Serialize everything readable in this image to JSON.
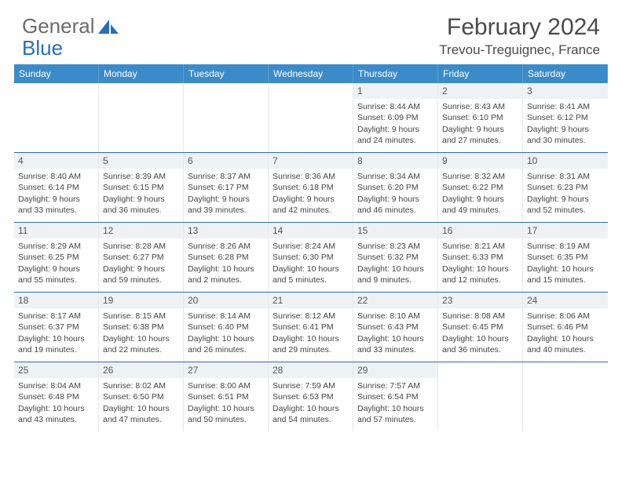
{
  "logo": {
    "text1": "General",
    "text2": "Blue"
  },
  "title": "February 2024",
  "location": "Trevou-Treguignec, France",
  "colors": {
    "header_bg": "#3b8bc9",
    "accent_line": "#2a6fb5",
    "daynum_bg": "#eef2f5",
    "text": "#444444"
  },
  "days_of_week": [
    "Sunday",
    "Monday",
    "Tuesday",
    "Wednesday",
    "Thursday",
    "Friday",
    "Saturday"
  ],
  "weeks": [
    [
      {
        "n": "",
        "sr": "",
        "ss": "",
        "dl": ""
      },
      {
        "n": "",
        "sr": "",
        "ss": "",
        "dl": ""
      },
      {
        "n": "",
        "sr": "",
        "ss": "",
        "dl": ""
      },
      {
        "n": "",
        "sr": "",
        "ss": "",
        "dl": ""
      },
      {
        "n": "1",
        "sr": "Sunrise: 8:44 AM",
        "ss": "Sunset: 6:09 PM",
        "dl": "Daylight: 9 hours and 24 minutes."
      },
      {
        "n": "2",
        "sr": "Sunrise: 8:43 AM",
        "ss": "Sunset: 6:10 PM",
        "dl": "Daylight: 9 hours and 27 minutes."
      },
      {
        "n": "3",
        "sr": "Sunrise: 8:41 AM",
        "ss": "Sunset: 6:12 PM",
        "dl": "Daylight: 9 hours and 30 minutes."
      }
    ],
    [
      {
        "n": "4",
        "sr": "Sunrise: 8:40 AM",
        "ss": "Sunset: 6:14 PM",
        "dl": "Daylight: 9 hours and 33 minutes."
      },
      {
        "n": "5",
        "sr": "Sunrise: 8:39 AM",
        "ss": "Sunset: 6:15 PM",
        "dl": "Daylight: 9 hours and 36 minutes."
      },
      {
        "n": "6",
        "sr": "Sunrise: 8:37 AM",
        "ss": "Sunset: 6:17 PM",
        "dl": "Daylight: 9 hours and 39 minutes."
      },
      {
        "n": "7",
        "sr": "Sunrise: 8:36 AM",
        "ss": "Sunset: 6:18 PM",
        "dl": "Daylight: 9 hours and 42 minutes."
      },
      {
        "n": "8",
        "sr": "Sunrise: 8:34 AM",
        "ss": "Sunset: 6:20 PM",
        "dl": "Daylight: 9 hours and 46 minutes."
      },
      {
        "n": "9",
        "sr": "Sunrise: 8:32 AM",
        "ss": "Sunset: 6:22 PM",
        "dl": "Daylight: 9 hours and 49 minutes."
      },
      {
        "n": "10",
        "sr": "Sunrise: 8:31 AM",
        "ss": "Sunset: 6:23 PM",
        "dl": "Daylight: 9 hours and 52 minutes."
      }
    ],
    [
      {
        "n": "11",
        "sr": "Sunrise: 8:29 AM",
        "ss": "Sunset: 6:25 PM",
        "dl": "Daylight: 9 hours and 55 minutes."
      },
      {
        "n": "12",
        "sr": "Sunrise: 8:28 AM",
        "ss": "Sunset: 6:27 PM",
        "dl": "Daylight: 9 hours and 59 minutes."
      },
      {
        "n": "13",
        "sr": "Sunrise: 8:26 AM",
        "ss": "Sunset: 6:28 PM",
        "dl": "Daylight: 10 hours and 2 minutes."
      },
      {
        "n": "14",
        "sr": "Sunrise: 8:24 AM",
        "ss": "Sunset: 6:30 PM",
        "dl": "Daylight: 10 hours and 5 minutes."
      },
      {
        "n": "15",
        "sr": "Sunrise: 8:23 AM",
        "ss": "Sunset: 6:32 PM",
        "dl": "Daylight: 10 hours and 9 minutes."
      },
      {
        "n": "16",
        "sr": "Sunrise: 8:21 AM",
        "ss": "Sunset: 6:33 PM",
        "dl": "Daylight: 10 hours and 12 minutes."
      },
      {
        "n": "17",
        "sr": "Sunrise: 8:19 AM",
        "ss": "Sunset: 6:35 PM",
        "dl": "Daylight: 10 hours and 15 minutes."
      }
    ],
    [
      {
        "n": "18",
        "sr": "Sunrise: 8:17 AM",
        "ss": "Sunset: 6:37 PM",
        "dl": "Daylight: 10 hours and 19 minutes."
      },
      {
        "n": "19",
        "sr": "Sunrise: 8:15 AM",
        "ss": "Sunset: 6:38 PM",
        "dl": "Daylight: 10 hours and 22 minutes."
      },
      {
        "n": "20",
        "sr": "Sunrise: 8:14 AM",
        "ss": "Sunset: 6:40 PM",
        "dl": "Daylight: 10 hours and 26 minutes."
      },
      {
        "n": "21",
        "sr": "Sunrise: 8:12 AM",
        "ss": "Sunset: 6:41 PM",
        "dl": "Daylight: 10 hours and 29 minutes."
      },
      {
        "n": "22",
        "sr": "Sunrise: 8:10 AM",
        "ss": "Sunset: 6:43 PM",
        "dl": "Daylight: 10 hours and 33 minutes."
      },
      {
        "n": "23",
        "sr": "Sunrise: 8:08 AM",
        "ss": "Sunset: 6:45 PM",
        "dl": "Daylight: 10 hours and 36 minutes."
      },
      {
        "n": "24",
        "sr": "Sunrise: 8:06 AM",
        "ss": "Sunset: 6:46 PM",
        "dl": "Daylight: 10 hours and 40 minutes."
      }
    ],
    [
      {
        "n": "25",
        "sr": "Sunrise: 8:04 AM",
        "ss": "Sunset: 6:48 PM",
        "dl": "Daylight: 10 hours and 43 minutes."
      },
      {
        "n": "26",
        "sr": "Sunrise: 8:02 AM",
        "ss": "Sunset: 6:50 PM",
        "dl": "Daylight: 10 hours and 47 minutes."
      },
      {
        "n": "27",
        "sr": "Sunrise: 8:00 AM",
        "ss": "Sunset: 6:51 PM",
        "dl": "Daylight: 10 hours and 50 minutes."
      },
      {
        "n": "28",
        "sr": "Sunrise: 7:59 AM",
        "ss": "Sunset: 6:53 PM",
        "dl": "Daylight: 10 hours and 54 minutes."
      },
      {
        "n": "29",
        "sr": "Sunrise: 7:57 AM",
        "ss": "Sunset: 6:54 PM",
        "dl": "Daylight: 10 hours and 57 minutes."
      },
      {
        "n": "",
        "sr": "",
        "ss": "",
        "dl": ""
      },
      {
        "n": "",
        "sr": "",
        "ss": "",
        "dl": ""
      }
    ]
  ]
}
